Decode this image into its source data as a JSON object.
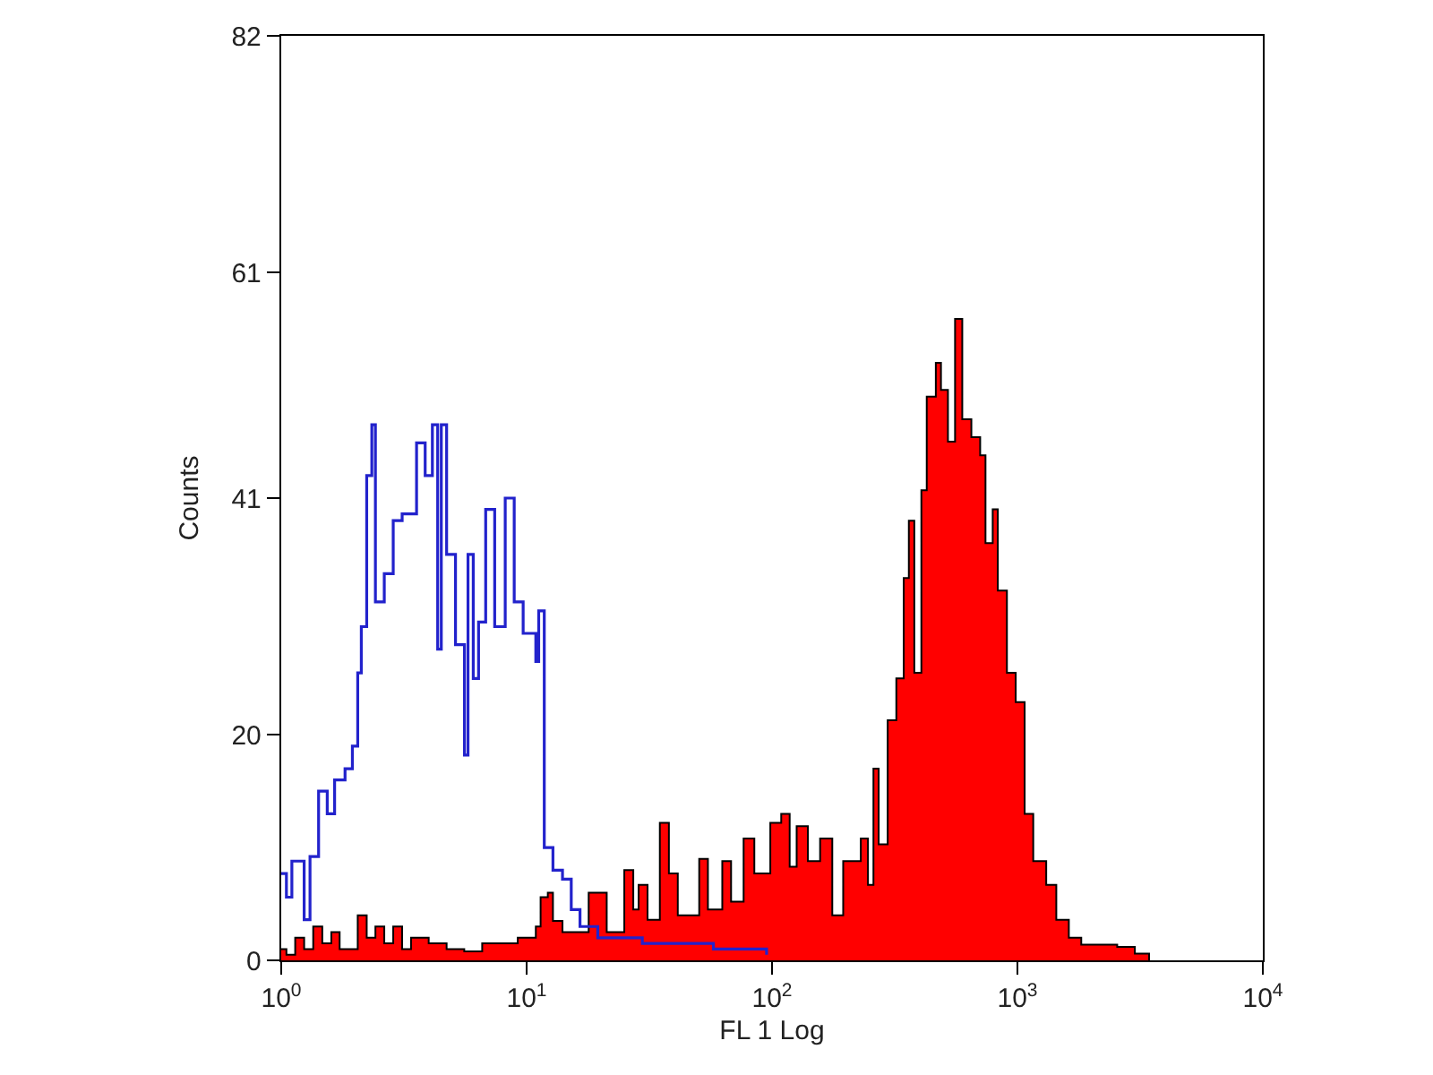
{
  "chart_data": {
    "type": "area",
    "xlabel": "FL 1 Log",
    "ylabel": "Counts",
    "log": "x",
    "xlim": [
      1,
      10000
    ],
    "xticks": [
      {
        "value": 1,
        "label": "10$^{0}$"
      },
      {
        "value": 10,
        "label": "10$^{1}$"
      },
      {
        "value": 100,
        "label": "10$^{2}$"
      },
      {
        "value": 1000,
        "label": "10$^{3}$"
      },
      {
        "value": 10000,
        "label": "10$^{4}$"
      }
    ],
    "ylim": [
      0,
      82
    ],
    "yticks": [
      0,
      20,
      41,
      61,
      82
    ],
    "series": [
      {
        "color": "#ff0000",
        "x": [
          1,
          1.05,
          1.14,
          1.24,
          1.35,
          1.47,
          1.6,
          1.73,
          2.05,
          2.23,
          2.42,
          2.63,
          2.86,
          3.11,
          3.38,
          3.99,
          4.72,
          5.57,
          6.59,
          9.2,
          10.9,
          11.4,
          12.2,
          12.8,
          14.0,
          17.9,
          21.2,
          25.0,
          27.2,
          28.6,
          31.1,
          34.9,
          38.0,
          41.3,
          50.5,
          54.8,
          62.7,
          68.1,
          76.6,
          84.7,
          98.4,
          109,
          118,
          126,
          140,
          157,
          176,
          195,
          230,
          246,
          259,
          272,
          296,
          321,
          344,
          361,
          380,
          406,
          427,
          465,
          488,
          521,
          557,
          596,
          649,
          705,
          741,
          793,
          832,
          906,
          984,
          1070,
          1160,
          1310,
          1440,
          1620,
          1820,
          2150,
          2550,
          3010,
          3440
        ],
        "values": [
          1,
          0.5,
          2,
          1,
          3,
          1.5,
          2.5,
          1,
          4,
          2,
          3,
          1.5,
          3,
          1,
          2,
          1.5,
          1,
          0.8,
          1.5,
          2,
          3,
          5.6,
          6,
          3.5,
          2.5,
          6,
          2.5,
          8,
          4.5,
          6.7,
          3.6,
          12.2,
          7.7,
          4,
          9,
          4.5,
          8.8,
          5.2,
          10.8,
          7.7,
          12.2,
          13,
          8.3,
          11.9,
          8.8,
          10.8,
          4,
          8.8,
          10.8,
          6.7,
          17,
          10.3,
          21.3,
          25,
          33.9,
          39,
          25.5,
          41.7,
          50,
          53,
          50.6,
          46,
          56.9,
          48,
          46.4,
          44.8,
          37,
          40,
          32.8,
          25.5,
          22.9,
          13,
          8.8,
          6.7,
          3.6,
          2,
          1.4,
          1.4,
          1.2,
          0.6,
          0
        ]
      },
      {
        "type": "step",
        "color": "#2222cc",
        "x": [
          1,
          1.05,
          1.105,
          1.24,
          1.31,
          1.42,
          1.54,
          1.65,
          1.82,
          1.95,
          2.05,
          2.12,
          2.23,
          2.34,
          2.42,
          2.63,
          2.86,
          3.11,
          3.56,
          3.86,
          4.13,
          4.34,
          4.49,
          4.72,
          5.13,
          5.58,
          5.77,
          6.06,
          6.37,
          6.81,
          7.41,
          8.18,
          8.9,
          9.68,
          10.9,
          11.2,
          11.8,
          12.8,
          14.0,
          15.2,
          16.5,
          19.5,
          29.6,
          57.7,
          95
        ],
        "values": [
          7.7,
          5.6,
          8.8,
          3.6,
          9.2,
          15,
          13,
          16,
          17,
          19,
          25.5,
          29.6,
          43,
          47.5,
          31.8,
          34.3,
          39,
          39.6,
          45.9,
          43,
          47.5,
          27.6,
          47.5,
          36,
          28,
          18.2,
          36,
          25,
          30,
          40,
          29.6,
          41,
          31.8,
          29,
          26.5,
          31,
          10,
          8,
          7.2,
          4.5,
          3,
          2,
          1.5,
          1,
          0.5
        ]
      }
    ]
  }
}
